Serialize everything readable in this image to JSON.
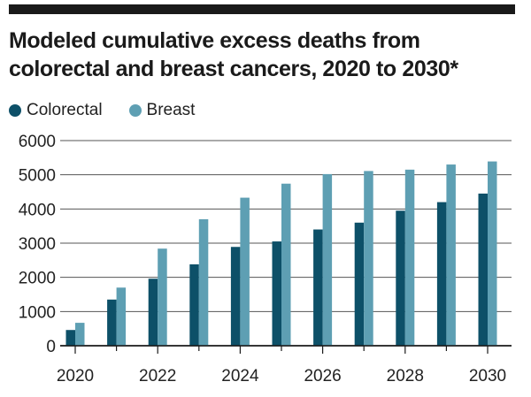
{
  "chart_data": {
    "type": "bar",
    "title": "Modeled cumulative excess deaths from colorectal and breast cancers, 2020 to 2030*",
    "xlabel": "",
    "ylabel": "",
    "categories": [
      2020,
      2021,
      2022,
      2023,
      2024,
      2025,
      2026,
      2027,
      2028,
      2029,
      2030
    ],
    "x_tick_labels": [
      "2020",
      "2022",
      "2024",
      "2026",
      "2028",
      "2030"
    ],
    "y_ticks": [
      0,
      1000,
      2000,
      3000,
      4000,
      5000,
      6000
    ],
    "ylim": [
      0,
      6000
    ],
    "grid": true,
    "legend_position": "top-left",
    "series": [
      {
        "name": "Colorectal",
        "color": "#0d5068",
        "values": [
          460,
          1350,
          1960,
          2380,
          2890,
          3050,
          3400,
          3600,
          3950,
          4200,
          4450
        ]
      },
      {
        "name": "Breast",
        "color": "#5e9fb3",
        "values": [
          670,
          1700,
          2840,
          3700,
          4330,
          4740,
          5020,
          5110,
          5150,
          5300,
          5390
        ]
      }
    ]
  }
}
